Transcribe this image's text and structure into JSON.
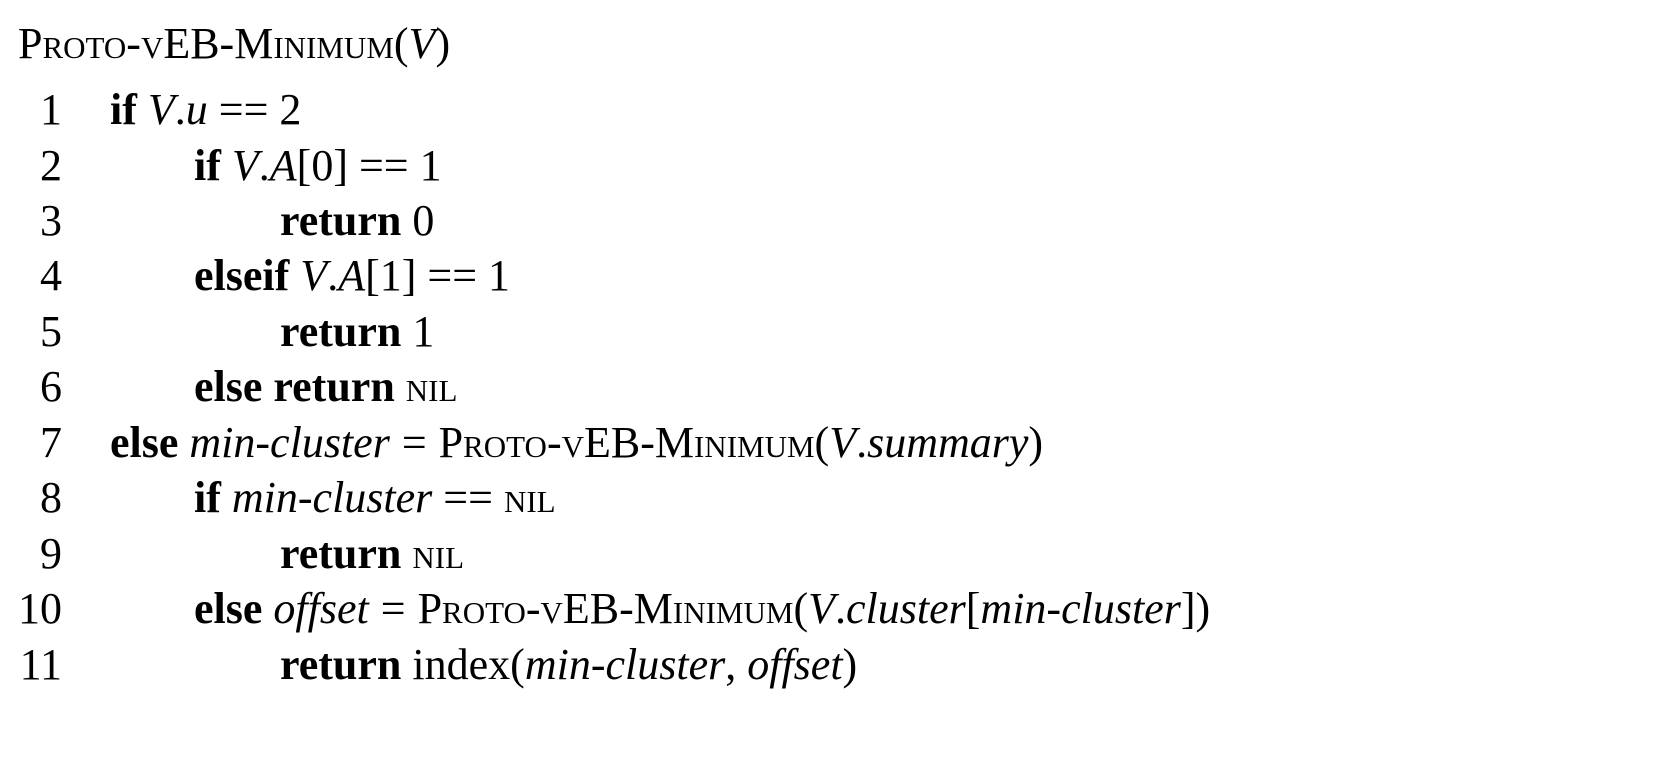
{
  "title": {
    "name": "Proto-vEB-Minimum",
    "param": "V"
  },
  "lines": [
    {
      "n": "1",
      "kw": "if",
      "cond": {
        "v": "V",
        "field": "u",
        "rhs": "2"
      }
    },
    {
      "n": "2",
      "kw": "if",
      "cond": {
        "v": "V",
        "field": "A",
        "idx": "0",
        "rhs": "1"
      }
    },
    {
      "n": "3",
      "kw": "return",
      "val": "0"
    },
    {
      "n": "4",
      "kw": "elseif",
      "cond": {
        "v": "V",
        "field": "A",
        "idx": "1",
        "rhs": "1"
      }
    },
    {
      "n": "5",
      "kw": "return",
      "val": "1"
    },
    {
      "n": "6",
      "kw": "else return",
      "val": "nil"
    },
    {
      "n": "7",
      "kw": "else",
      "var": "min-cluster",
      "call": "Proto-vEB-Minimum",
      "arg_v": "V",
      "arg_field": "summary"
    },
    {
      "n": "8",
      "kw": "if",
      "var": "min-cluster",
      "op": "==",
      "rhs": "nil"
    },
    {
      "n": "9",
      "kw": "return",
      "val": "nil"
    },
    {
      "n": "10",
      "kw": "else",
      "var": "offset",
      "call": "Proto-vEB-Minimum",
      "arg_v": "V",
      "arg_field": "cluster",
      "arg_idx": "min-cluster"
    },
    {
      "n": "11",
      "kw": "return",
      "fn": "index",
      "a1": "min-cluster",
      "a2": "offset"
    }
  ]
}
